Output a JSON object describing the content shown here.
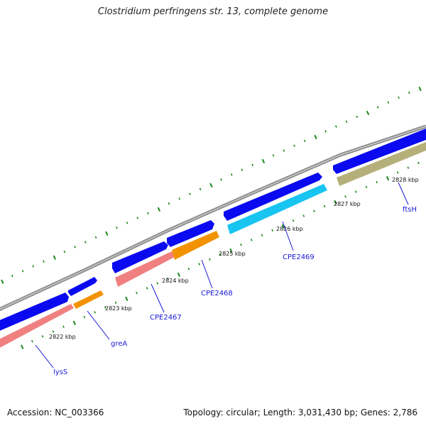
{
  "title": "Clostridium perfringens str. 13, complete genome",
  "footer": {
    "accession": "Accession: NC_003366",
    "summary": "Topology: circular; Length: 3,031,430 bp; Genes: 2,786"
  },
  "colors": {
    "backbone": "#8c8c8c",
    "forward_gene": "#0a0af0",
    "ticks": "#1a8a1a",
    "label": "#1a1ad6"
  },
  "kbp_labels": [
    "2822 kbp",
    "2823 kbp",
    "2824 kbp",
    "2825 kbp",
    "2826 kbp",
    "2827 kbp",
    "2828 kbp"
  ],
  "genes": [
    {
      "name": "lysS",
      "color": "#f08080"
    },
    {
      "name": "greA",
      "color": "#f39200"
    },
    {
      "name": "CPE2467",
      "color": "#f08080"
    },
    {
      "name": "CPE2468",
      "color": "#f39200"
    },
    {
      "name": "CPE2469",
      "color": "#18c4f0"
    },
    {
      "name": "ftsH",
      "color": "#b5b07a"
    }
  ]
}
